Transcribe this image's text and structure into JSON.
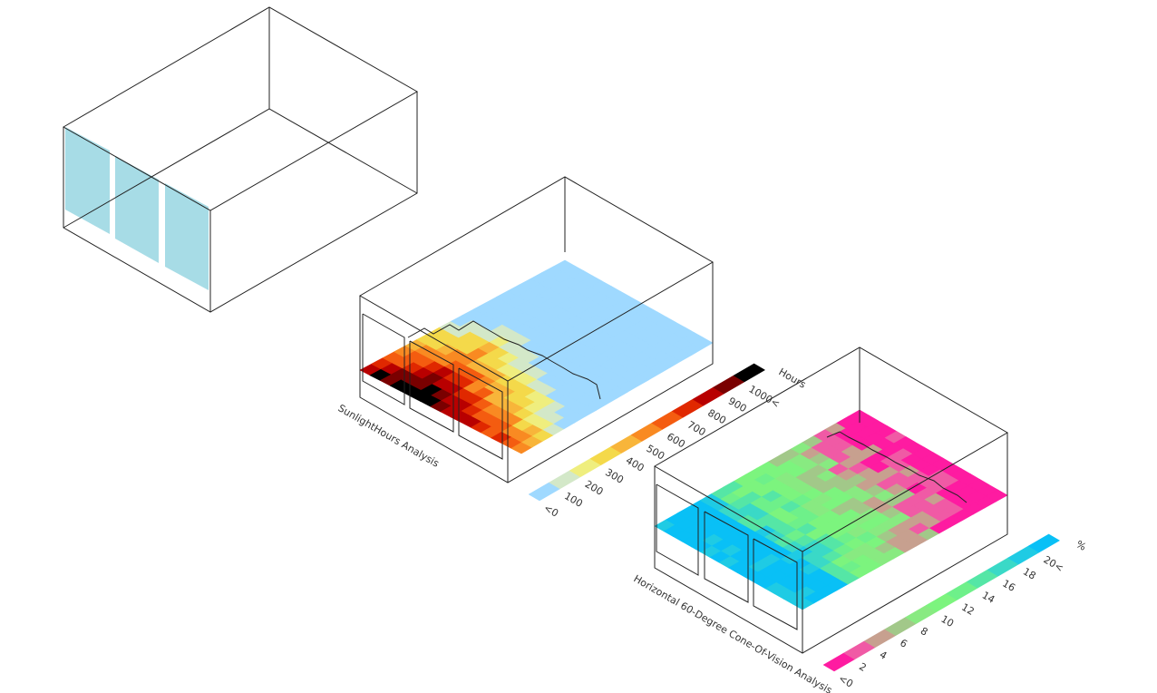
{
  "colors": {
    "line": "#222222",
    "window_glass": "#a7dce6",
    "sunlight_ramp": [
      "#9fd9ff",
      "#d3e8c8",
      "#efee7e",
      "#f4d94a",
      "#f8b53a",
      "#f98a22",
      "#f45c10",
      "#e02800",
      "#b80000",
      "#7a0000",
      "#000000"
    ],
    "cone_ramp": [
      "#fe1ba1",
      "#f05aa5",
      "#c7a08f",
      "#a2c889",
      "#88ea81",
      "#7cf47e",
      "#6ef08a",
      "#55e6a6",
      "#3ad9c7",
      "#1fcbe4",
      "#09c0f6"
    ]
  },
  "diagrams": {
    "base_model": {
      "label": "",
      "windows": 3
    },
    "sunlight_hours": {
      "label": "SunlightHours Analysis",
      "legend": {
        "unit": "Hours",
        "labels": [
          "<0",
          "100",
          "200",
          "300",
          "400",
          "500",
          "600",
          "700",
          "800",
          "900",
          "1000<"
        ]
      }
    },
    "cone_of_vision": {
      "label": "Horizontal 60-Degree Cone-Of-Vision Analysis",
      "legend": {
        "unit": "%",
        "labels": [
          "<0",
          "2",
          "4",
          "6",
          "8",
          "10",
          "12",
          "14",
          "16",
          "18",
          "20<"
        ]
      }
    }
  }
}
